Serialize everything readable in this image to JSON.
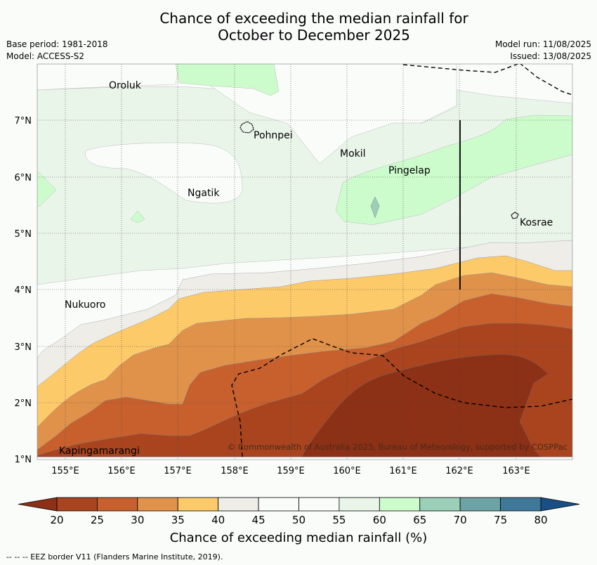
{
  "title_line1": "Chance of exceeding the median rainfall for",
  "title_line2": "October to December 2025",
  "meta_left": [
    "Base period: 1981-2018",
    "Model: ACCESS-S2"
  ],
  "meta_right": [
    "Model run: 11/08/2025",
    "Issued: 13/08/2025"
  ],
  "lon_labels": [
    "155°E",
    "156°E",
    "157°E",
    "158°E",
    "159°E",
    "160°E",
    "161°E",
    "162°E",
    "163°E"
  ],
  "lat_labels": [
    "7°N",
    "6°N",
    "5°N",
    "4°N",
    "3°N",
    "2°N",
    "1°N"
  ],
  "places": [
    {
      "name": "Oroluk"
    },
    {
      "name": "Pohnpei"
    },
    {
      "name": "Mokil"
    },
    {
      "name": "Pingelap"
    },
    {
      "name": "Ngatik"
    },
    {
      "name": "Kosrae"
    },
    {
      "name": "Nukuoro"
    },
    {
      "name": "Kapingamarangi"
    }
  ],
  "copyright": "© Commonwealth of Australia 2025, Bureau of Meteorology, supported by COSPPac",
  "colorbar": {
    "ticks": [
      "20",
      "25",
      "30",
      "35",
      "40",
      "45",
      "50",
      "55",
      "60",
      "65",
      "70",
      "75",
      "80"
    ],
    "colors": [
      "#a9441f",
      "#c8602e",
      "#e0924a",
      "#fdca6a",
      "#efede8",
      "#fafcfa",
      "#fafcfa",
      "#eaf5ea",
      "#ccfccc",
      "#9ccfb8",
      "#6ea3a6",
      "#3f7898"
    ],
    "under_color": "#8c3016",
    "over_color": "#1a4f86",
    "label": "Chance of exceeding median rainfall (%)"
  },
  "footnote": "--  --  -- EEZ border V11 (Flanders Marine Institute, 2019)."
}
